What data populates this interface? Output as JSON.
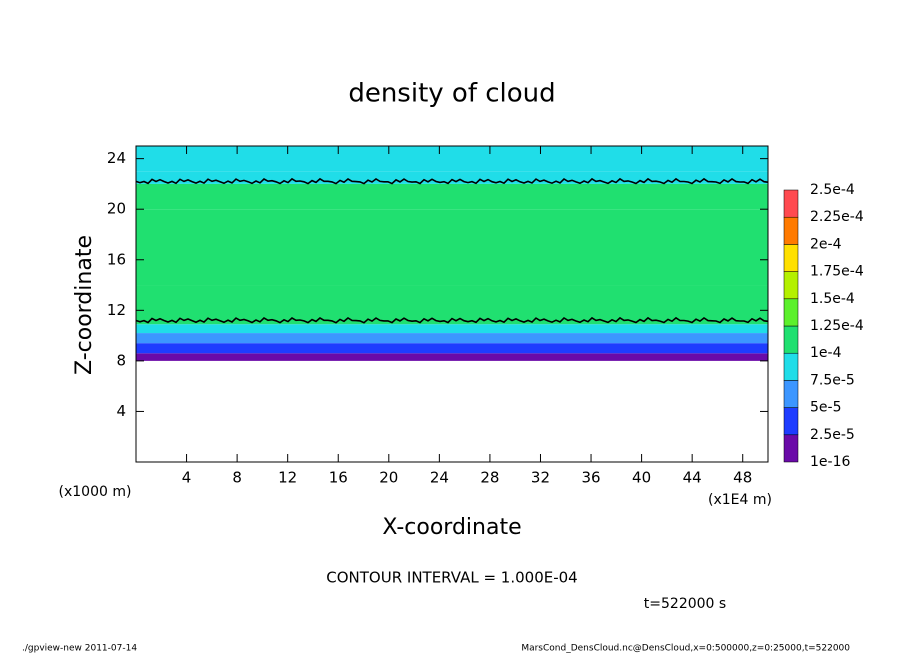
{
  "chart_data": {
    "type": "heatmap",
    "title": "density of cloud",
    "x_label": "X-coordinate",
    "y_label": "Z-coordinate",
    "x_unit": "(x1E4 m)",
    "y_unit": "(x1000 m)",
    "annotation": "CONTOUR INTERVAL = 1.000E-04",
    "time_label": "t=522000 s",
    "footer_left": "./gpview-new  2011-07-14",
    "footer_right": "MarsCond_DensCloud.nc@DensCloud,x=0:500000,z=0:25000,t=522000",
    "xlim": [
      0,
      50
    ],
    "xticks": [
      4,
      8,
      12,
      16,
      20,
      24,
      28,
      32,
      36,
      40,
      44,
      48
    ],
    "ylim": [
      0,
      25
    ],
    "yticks": [
      4,
      8,
      12,
      16,
      20,
      24
    ],
    "z_bins": [
      8,
      8.6,
      9.4,
      10.2,
      10.9,
      14,
      20,
      22,
      23,
      25
    ],
    "values": [
      1e-05,
      3e-05,
      6e-05,
      9e-05,
      0.00011,
      0.00012,
      0.00011,
      9e-05,
      8e-05
    ],
    "contour_z": [
      11.2,
      22.2
    ],
    "colorbar_levels": [
      {
        "value": 1e-16,
        "label": "1e-16"
      },
      {
        "value": 2.5e-05,
        "label": "2.5e-5"
      },
      {
        "value": 5e-05,
        "label": "5e-5"
      },
      {
        "value": 7.5e-05,
        "label": "7.5e-5"
      },
      {
        "value": 0.0001,
        "label": "1e-4"
      },
      {
        "value": 0.000125,
        "label": "1.25e-4"
      },
      {
        "value": 0.00015,
        "label": "1.5e-4"
      },
      {
        "value": 0.000175,
        "label": "1.75e-4"
      },
      {
        "value": 0.0002,
        "label": "2e-4"
      },
      {
        "value": 0.000225,
        "label": "2.25e-4"
      },
      {
        "value": 0.00025,
        "label": "2.5e-4"
      }
    ],
    "colorbar_colors": [
      "#6a0aa8",
      "#1e3cff",
      "#3c96ff",
      "#20dde8",
      "#20e070",
      "#5cf02c",
      "#b4f000",
      "#ffe000",
      "#ff7a00",
      "#ff4a50"
    ]
  }
}
